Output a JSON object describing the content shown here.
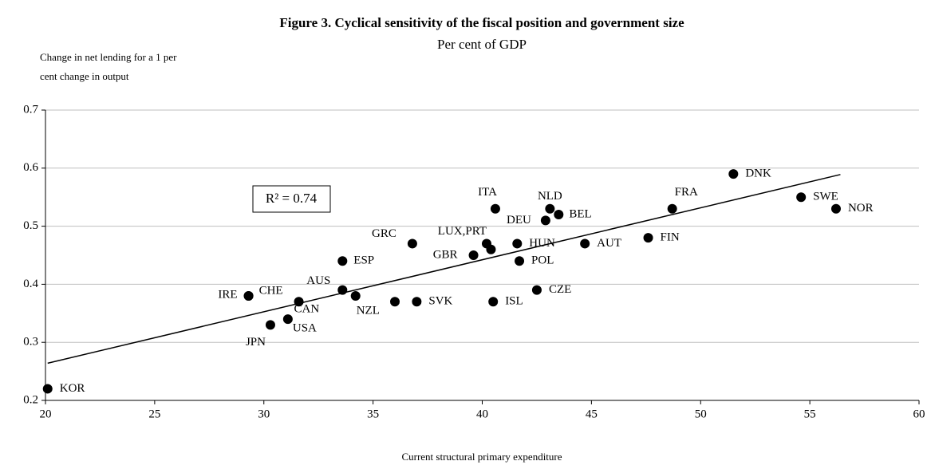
{
  "chart_data": {
    "type": "scatter",
    "title": "Figure 3. Cyclical sensitivity of the fiscal position and government size",
    "subtitle": "Per cent of GDP",
    "y_label": [
      "Change in net lending for a 1 per",
      "cent change in output"
    ],
    "x_label": "Current structural primary expenditure",
    "annotation": "R² = 0.74",
    "color": "#000000",
    "x": [
      20.1,
      29.3,
      29.3,
      30.3,
      31.1,
      31.6,
      33.6,
      33.6,
      34.2,
      36.0,
      37.0,
      36.8,
      39.6,
      40.2,
      40.4,
      40.6,
      41.6,
      41.7,
      40.5,
      42.5,
      42.9,
      43.1,
      43.5,
      44.7,
      47.6,
      48.7,
      51.5,
      54.6,
      56.2
    ],
    "values": [
      0.22,
      0.38,
      0.38,
      0.33,
      0.34,
      0.37,
      0.39,
      0.44,
      0.38,
      0.37,
      0.37,
      0.47,
      0.45,
      0.47,
      0.46,
      0.53,
      0.47,
      0.44,
      0.37,
      0.39,
      0.51,
      0.53,
      0.52,
      0.47,
      0.48,
      0.53,
      0.59,
      0.55,
      0.53
    ],
    "point_labels": [
      "KOR",
      "IRE",
      "CHE",
      "JPN",
      "USA",
      "CAN",
      "AUS",
      "ESP",
      "NZL",
      null,
      "SVK",
      "GRC",
      "GBR",
      "LUX,PRT",
      null,
      "ITA",
      "HUN",
      "POL",
      "ISL",
      "CZE",
      "DEU",
      "NLD",
      "BEL",
      "AUT",
      "FIN",
      "FRA",
      "DNK",
      "SWE",
      "NOR"
    ],
    "trendline": {
      "x": [
        20.1,
        56.4
      ],
      "values": [
        0.264,
        0.589
      ]
    },
    "xlim": [
      20,
      60
    ],
    "xticks": [
      20,
      25,
      30,
      35,
      40,
      45,
      50,
      55,
      60
    ],
    "ylim": [
      0.2,
      0.7
    ],
    "yticks": [
      0.2,
      0.3,
      0.4,
      0.5,
      0.6,
      0.7
    ],
    "grid": true
  }
}
